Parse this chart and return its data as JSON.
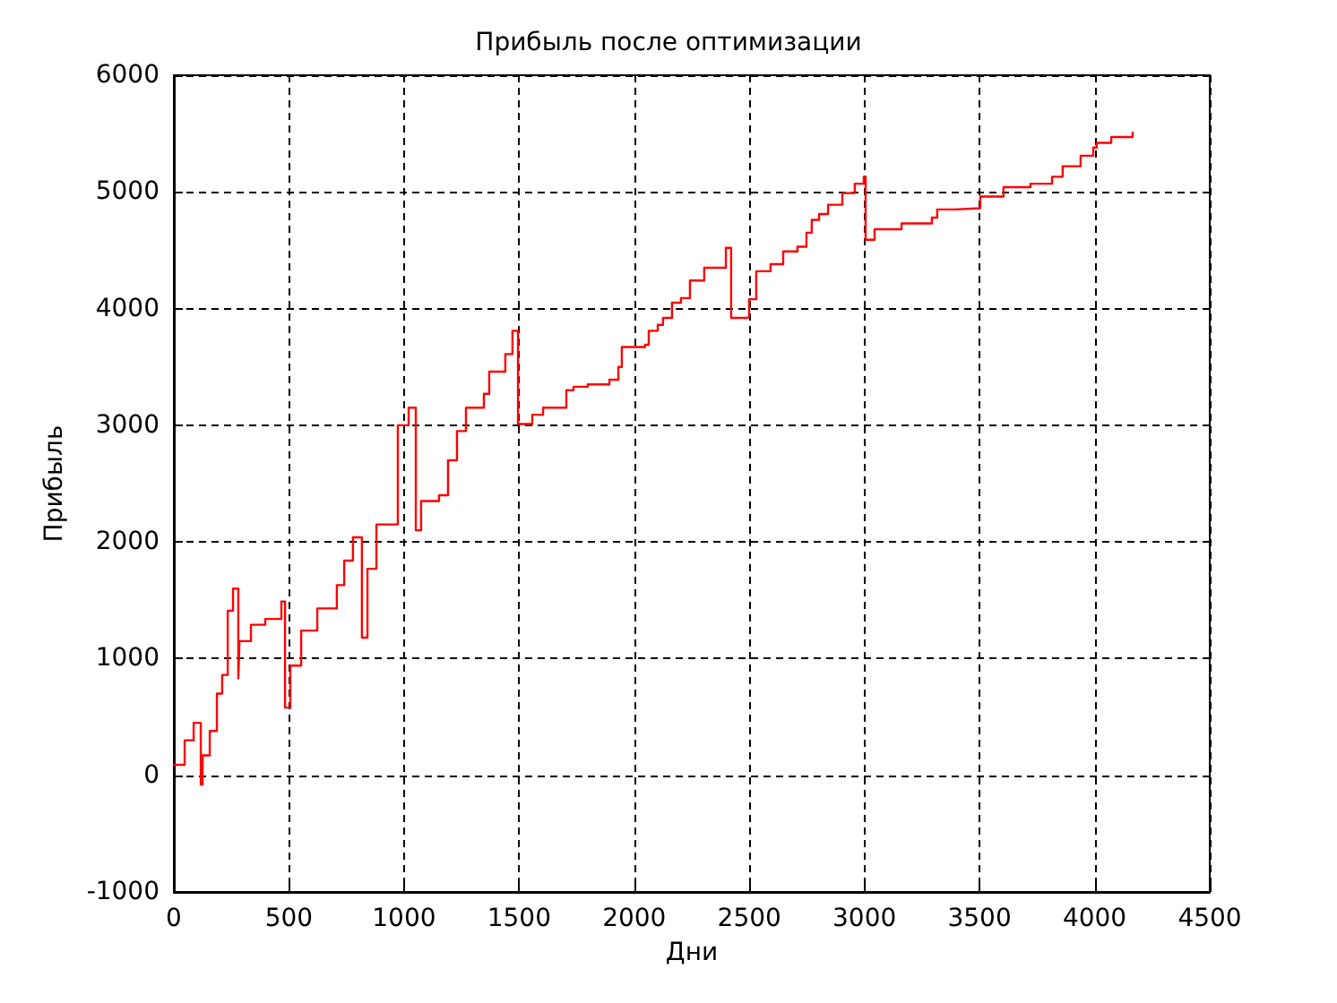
{
  "chart_data": {
    "type": "step",
    "title": "Прибыль после оптимизации",
    "xlabel": "Дни",
    "ylabel": "Прибыль",
    "xlim": [
      0,
      4500
    ],
    "xticks": [
      0,
      500,
      1000,
      1500,
      2000,
      2500,
      3000,
      3500,
      4000,
      4500
    ],
    "ylim": [
      -1000,
      6000
    ],
    "yticks": [
      -1000,
      0,
      1000,
      2000,
      3000,
      4000,
      5000,
      6000
    ],
    "grid": true,
    "marker": "none",
    "line_style": "solid",
    "series": [
      {
        "color": "#ff0000",
        "x": [
          0,
          47,
          86,
          117,
          125,
          156,
          187,
          210,
          234,
          257,
          280,
          285,
          335,
          397,
          467,
          483,
          506,
          553,
          623,
          708,
          740,
          778,
          817,
          841,
          880,
          973,
          1020,
          1051,
          1074,
          1152,
          1191,
          1230,
          1269,
          1347,
          1370,
          1440,
          1471,
          1495,
          1557,
          1604,
          1705,
          1736,
          1798,
          1892,
          1931,
          1946,
          2047,
          2063,
          2102,
          2125,
          2164,
          2203,
          2242,
          2304,
          2398,
          2421,
          2491,
          2499,
          2530,
          2592,
          2647,
          2709,
          2748,
          2771,
          2803,
          2842,
          2904,
          2958,
          2997,
          3005,
          3044,
          3161,
          3293,
          3316,
          3394,
          3503,
          3604,
          3721,
          3815,
          3861,
          3939,
          3994,
          4009,
          4072,
          4165
        ],
        "values": [
          90,
          300,
          450,
          -80,
          170,
          380,
          700,
          860,
          1410,
          1600,
          830,
          1150,
          1290,
          1340,
          1490,
          580,
          940,
          1240,
          1430,
          1630,
          1840,
          2040,
          1180,
          1770,
          2150,
          3000,
          3150,
          2100,
          2350,
          2400,
          2700,
          2950,
          3150,
          3270,
          3460,
          3610,
          3810,
          3010,
          3090,
          3150,
          3300,
          3330,
          3350,
          3390,
          3500,
          3670,
          3690,
          3810,
          3860,
          3920,
          4050,
          4090,
          4240,
          4350,
          4520,
          3920,
          3930,
          4080,
          4320,
          4380,
          4490,
          4530,
          4650,
          4760,
          4810,
          4890,
          4990,
          5070,
          5130,
          4590,
          4680,
          4730,
          4780,
          4850,
          4860,
          4960,
          5040,
          5070,
          5130,
          5220,
          5310,
          5380,
          5420,
          5470,
          5510
        ]
      }
    ]
  }
}
